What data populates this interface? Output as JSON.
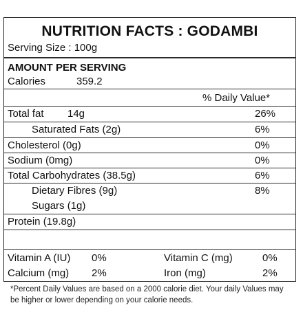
{
  "header": {
    "title": "NUTRITION FACTS : GODAMBI",
    "serving_size": "Serving Size : 100g"
  },
  "amount": {
    "heading": "AMOUNT PER SERVING",
    "calories_label": "Calories",
    "calories_value": "359.2"
  },
  "daily_value_heading": "% Daily Value*",
  "nutrients": [
    {
      "label": "Total fat",
      "amount": "14g",
      "dv": "26%"
    },
    {
      "label": "Saturated Fats (2g)",
      "dv": "6%"
    },
    {
      "label": "Cholesterol (0g)",
      "dv": "0%"
    },
    {
      "label": "Sodium (0mg)",
      "dv": "0%"
    },
    {
      "label": "Total Carbohydrates (38.5g)",
      "dv": "6%"
    },
    {
      "label": "Dietary Fibres (9g)",
      "dv": "8%"
    },
    {
      "label": "Sugars (1g)"
    },
    {
      "label": "Protein (19.8g)"
    }
  ],
  "vitamins": {
    "vitamin_a_label": "Vitamin A (IU)",
    "vitamin_a_value": "0%",
    "vitamin_c_label": "Vitamin C (mg)",
    "vitamin_c_value": "0%",
    "calcium_label": "Calcium (mg)",
    "calcium_value": "2%",
    "iron_label": "Iron (mg)",
    "iron_value": "2%"
  },
  "footnote": "*Percent Daily Values are based on a 2000 calorie diet. Your daily Values may be higher or lower depending on your calorie needs."
}
